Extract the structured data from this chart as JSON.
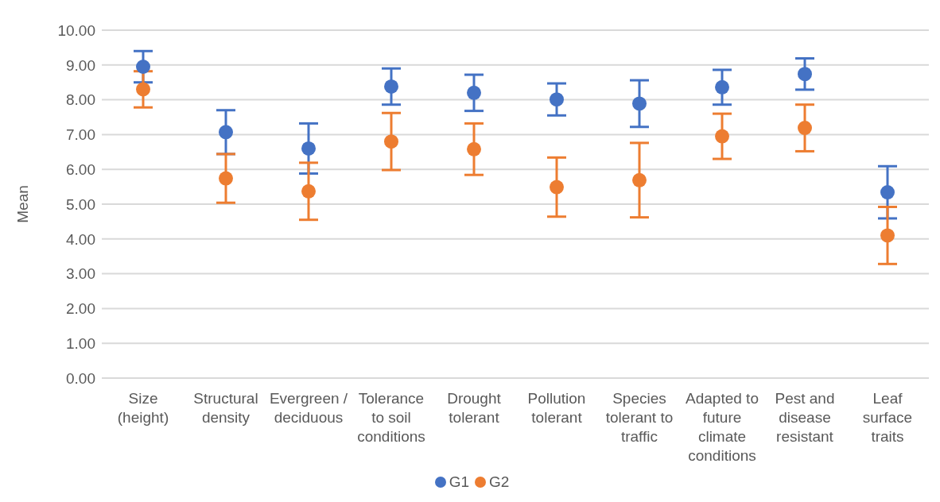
{
  "chart_data": {
    "type": "scatter",
    "ylabel": "Mean",
    "categories": [
      "Size (height)",
      "Structural density",
      "Evergreen / deciduous",
      "Tolerance to soil conditions",
      "Drought tolerant",
      "Pollution tolerant",
      "Species tolerant to traffic",
      "Adapted to future climate conditions",
      "Pest and disease resistant",
      "Leaf surface traits"
    ],
    "series": [
      {
        "name": "G1",
        "color": "#4472c4",
        "values": [
          8.95,
          7.07,
          6.6,
          8.38,
          8.2,
          8.01,
          7.89,
          8.36,
          8.74,
          5.34
        ],
        "errors": [
          0.45,
          0.63,
          0.72,
          0.52,
          0.52,
          0.46,
          0.67,
          0.5,
          0.45,
          0.75
        ]
      },
      {
        "name": "G2",
        "color": "#ed7d31",
        "values": [
          8.3,
          5.74,
          5.37,
          6.8,
          6.58,
          5.49,
          5.69,
          6.95,
          7.19,
          4.1
        ],
        "errors": [
          0.52,
          0.7,
          0.82,
          0.82,
          0.74,
          0.85,
          1.07,
          0.65,
          0.67,
          0.82
        ]
      }
    ],
    "ylim": [
      0,
      10
    ],
    "yticks": [
      {
        "value": 0,
        "label": "0.00"
      },
      {
        "value": 1,
        "label": "1.00"
      },
      {
        "value": 2,
        "label": "2.00"
      },
      {
        "value": 3,
        "label": "3.00"
      },
      {
        "value": 4,
        "label": "4.00"
      },
      {
        "value": 5,
        "label": "5.00"
      },
      {
        "value": 6,
        "label": "6.00"
      },
      {
        "value": 7,
        "label": "7.00"
      },
      {
        "value": 8,
        "label": "8.00"
      },
      {
        "value": 9,
        "label": "9.00"
      },
      {
        "value": 10,
        "label": "10.00"
      }
    ],
    "grid": "y",
    "legend": "bottom",
    "marker": "circle"
  }
}
